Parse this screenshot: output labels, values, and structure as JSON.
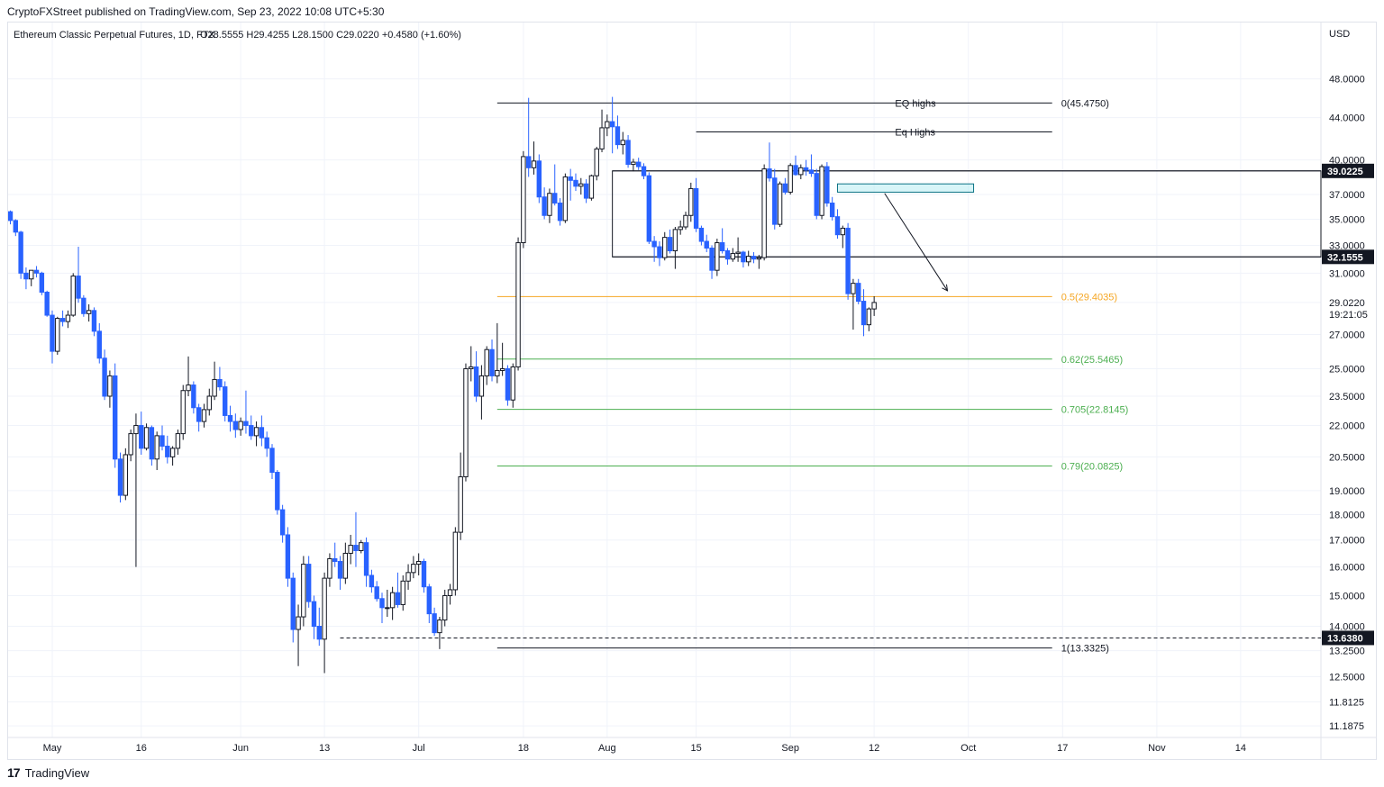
{
  "header": {
    "published": "CryptoFXStreet published on TradingView.com, Sep 23, 2022 10:08 UTC+5:30"
  },
  "footer": {
    "logo_text": "TradingView",
    "logo_mark": "17"
  },
  "colors": {
    "up": "#ffffff",
    "down": "#2962ff",
    "fib_orange": "#f5a623",
    "fib_green": "#4caf50",
    "box": "#b2ebf2"
  },
  "chart_data": {
    "type": "candlestick",
    "legend": {
      "symbol": "Ethereum Classic Perpetual Futures, 1D, FTX",
      "ohlc": "O28.5555  H29.4255  L28.1500  C29.0220  +0.4580 (+1.60%)"
    },
    "currency": "USD",
    "y_scale": "log",
    "ylim": [
      10.9,
      54.5
    ],
    "y_ticks": [
      "48.0000",
      "44.0000",
      "40.0000",
      "37.0000",
      "35.0000",
      "33.0000",
      "31.0000",
      "29.0220",
      "27.0000",
      "25.0000",
      "23.5000",
      "22.0000",
      "20.5000",
      "19.0000",
      "18.0000",
      "17.0000",
      "16.0000",
      "15.0000",
      "14.0000",
      "13.2500",
      "12.5000",
      "11.8125",
      "11.1875"
    ],
    "x_ticks": [
      "May",
      "16",
      "Jun",
      "13",
      "Jul",
      "18",
      "Aug",
      "15",
      "Sep",
      "12",
      "Oct",
      "17",
      "Nov",
      "14"
    ],
    "countdown": "19:21:05",
    "price_badges": [
      {
        "label": "39.0225",
        "value": 39.0225
      },
      {
        "label": "32.1555",
        "value": 32.1555
      },
      {
        "label": "13.6380",
        "value": 13.638
      }
    ],
    "fib_levels": [
      {
        "label": "0(45.4750)",
        "value": 45.475,
        "color": "#131722"
      },
      {
        "label": "0.5(29.4035)",
        "value": 29.4035,
        "color": "#f5a623"
      },
      {
        "label": "0.62(25.5465)",
        "value": 25.5465,
        "color": "#4caf50"
      },
      {
        "label": "0.705(22.8145)",
        "value": 22.8145,
        "color": "#4caf50"
      },
      {
        "label": "0.79(20.0825)",
        "value": 20.0825,
        "color": "#4caf50"
      },
      {
        "label": "1(13.3325)",
        "value": 13.3325,
        "color": "#131722"
      }
    ],
    "annotations": [
      {
        "label": "EQ highs",
        "value": 45.475
      },
      {
        "label": "Eq Highs",
        "value": 42.6
      }
    ],
    "range_box": {
      "top": 39.0225,
      "bottom": 32.1555
    },
    "supply_zone": {
      "top": 37.9,
      "bottom": 37.2
    },
    "candles": [
      [
        35.6,
        35.7,
        34.6,
        34.9
      ],
      [
        34.9,
        35.0,
        33.7,
        34.0
      ],
      [
        34.0,
        34.1,
        30.6,
        31.0
      ],
      [
        31.0,
        31.4,
        29.9,
        30.6
      ],
      [
        30.6,
        31.2,
        30.1,
        31.2
      ],
      [
        31.2,
        31.5,
        30.7,
        31.0
      ],
      [
        31.0,
        31.1,
        29.5,
        29.7
      ],
      [
        29.7,
        29.8,
        28.1,
        28.2
      ],
      [
        28.2,
        28.5,
        25.3,
        26.0
      ],
      [
        26.0,
        28.1,
        25.8,
        28.0
      ],
      [
        28.0,
        28.5,
        27.5,
        27.8
      ],
      [
        27.8,
        28.5,
        27.4,
        28.2
      ],
      [
        28.2,
        31.0,
        28.1,
        30.8
      ],
      [
        30.8,
        32.9,
        29.0,
        29.3
      ],
      [
        29.3,
        29.5,
        28.1,
        28.3
      ],
      [
        28.3,
        28.9,
        27.8,
        28.5
      ],
      [
        28.5,
        28.7,
        26.9,
        27.2
      ],
      [
        27.2,
        27.7,
        25.3,
        25.6
      ],
      [
        25.6,
        26.1,
        23.3,
        23.5
      ],
      [
        23.5,
        24.9,
        22.9,
        24.6
      ],
      [
        24.6,
        25.3,
        20.0,
        20.4
      ],
      [
        20.4,
        20.7,
        18.5,
        18.8
      ],
      [
        18.8,
        20.9,
        18.6,
        20.6
      ],
      [
        20.6,
        21.8,
        20.3,
        21.6
      ],
      [
        21.6,
        22.6,
        16.0,
        22.0
      ],
      [
        22.0,
        22.7,
        20.6,
        20.9
      ],
      [
        20.9,
        22.1,
        20.8,
        21.9
      ],
      [
        21.9,
        22.0,
        20.1,
        20.4
      ],
      [
        20.4,
        21.7,
        19.9,
        21.5
      ],
      [
        21.5,
        22.0,
        20.8,
        21.0
      ],
      [
        21.0,
        21.5,
        20.2,
        20.5
      ],
      [
        20.5,
        21.0,
        20.1,
        20.9
      ],
      [
        20.9,
        21.8,
        20.6,
        21.6
      ],
      [
        21.6,
        24.1,
        21.3,
        23.8
      ],
      [
        23.8,
        25.7,
        23.5,
        24.1
      ],
      [
        24.1,
        24.3,
        22.6,
        22.9
      ],
      [
        22.9,
        23.1,
        21.7,
        22.2
      ],
      [
        22.2,
        23.1,
        21.9,
        22.8
      ],
      [
        22.8,
        23.9,
        22.5,
        23.5
      ],
      [
        23.5,
        25.4,
        23.3,
        24.4
      ],
      [
        24.4,
        25.1,
        23.8,
        24.0
      ],
      [
        24.0,
        24.3,
        22.2,
        22.5
      ],
      [
        22.5,
        23.0,
        21.7,
        22.2
      ],
      [
        22.2,
        22.6,
        21.4,
        21.8
      ],
      [
        21.8,
        22.4,
        21.5,
        22.2
      ],
      [
        22.2,
        23.8,
        21.6,
        22.0
      ],
      [
        22.0,
        22.5,
        21.3,
        21.5
      ],
      [
        21.5,
        22.2,
        21.0,
        21.9
      ],
      [
        21.9,
        22.5,
        21.0,
        21.4
      ],
      [
        21.4,
        21.7,
        20.5,
        20.9
      ],
      [
        20.9,
        21.1,
        19.5,
        19.8
      ],
      [
        19.8,
        19.9,
        18.0,
        18.2
      ],
      [
        18.2,
        18.4,
        16.9,
        17.2
      ],
      [
        17.2,
        17.5,
        15.3,
        15.6
      ],
      [
        15.6,
        15.8,
        13.5,
        13.9
      ],
      [
        13.9,
        14.7,
        12.8,
        14.3
      ],
      [
        14.3,
        16.4,
        14.0,
        16.1
      ],
      [
        16.1,
        16.4,
        14.6,
        14.8
      ],
      [
        14.8,
        15.0,
        13.6,
        14.0
      ],
      [
        14.0,
        14.6,
        13.4,
        13.6
      ],
      [
        13.6,
        15.8,
        12.6,
        15.6
      ],
      [
        15.6,
        16.5,
        15.3,
        16.3
      ],
      [
        16.3,
        16.9,
        16.0,
        16.2
      ],
      [
        16.2,
        16.4,
        15.2,
        15.6
      ],
      [
        15.6,
        16.9,
        15.4,
        16.5
      ],
      [
        16.5,
        17.2,
        16.1,
        16.8
      ],
      [
        16.8,
        18.1,
        16.0,
        16.6
      ],
      [
        16.6,
        17.0,
        16.5,
        16.9
      ],
      [
        16.9,
        17.1,
        15.3,
        15.7
      ],
      [
        15.7,
        15.9,
        15.1,
        15.3
      ],
      [
        15.3,
        15.5,
        14.8,
        14.9
      ],
      [
        14.9,
        15.1,
        14.1,
        14.6
      ],
      [
        14.6,
        15.2,
        14.3,
        14.6
      ],
      [
        14.6,
        15.3,
        14.2,
        15.1
      ],
      [
        15.1,
        15.8,
        14.6,
        14.7
      ],
      [
        14.7,
        15.7,
        14.5,
        15.5
      ],
      [
        15.5,
        16.1,
        15.2,
        15.8
      ],
      [
        15.8,
        16.4,
        15.6,
        16.1
      ],
      [
        16.1,
        16.5,
        15.7,
        16.2
      ],
      [
        16.2,
        16.3,
        15.1,
        15.3
      ],
      [
        15.3,
        15.4,
        14.1,
        14.4
      ],
      [
        14.4,
        14.6,
        13.7,
        13.8
      ],
      [
        13.8,
        14.3,
        13.3,
        14.2
      ],
      [
        14.2,
        15.2,
        14.0,
        15.0
      ],
      [
        15.0,
        15.4,
        14.7,
        15.2
      ],
      [
        15.2,
        17.5,
        15.0,
        17.3
      ],
      [
        17.3,
        20.7,
        17.0,
        19.6
      ],
      [
        19.6,
        25.3,
        19.4,
        25.0
      ],
      [
        25.0,
        26.3,
        24.3,
        25.1
      ],
      [
        25.1,
        26.0,
        23.2,
        23.5
      ],
      [
        23.5,
        25.2,
        22.3,
        24.6
      ],
      [
        24.6,
        26.3,
        24.1,
        26.1
      ],
      [
        26.1,
        26.7,
        24.3,
        24.6
      ],
      [
        24.6,
        27.7,
        24.2,
        24.9
      ],
      [
        24.9,
        26.5,
        24.6,
        25.0
      ],
      [
        25.0,
        25.2,
        23.0,
        23.3
      ],
      [
        23.3,
        25.3,
        22.9,
        25.1
      ],
      [
        25.1,
        33.6,
        24.9,
        33.2
      ],
      [
        33.2,
        40.8,
        32.8,
        40.3
      ],
      [
        40.3,
        46.0,
        38.5,
        39.3
      ],
      [
        39.3,
        41.7,
        38.7,
        39.9
      ],
      [
        39.9,
        40.5,
        36.3,
        36.8
      ],
      [
        36.8,
        37.6,
        35.0,
        35.3
      ],
      [
        35.3,
        37.5,
        34.7,
        37.1
      ],
      [
        37.1,
        39.6,
        36.1,
        36.3
      ],
      [
        36.3,
        36.7,
        34.5,
        34.9
      ],
      [
        34.9,
        38.8,
        34.7,
        38.5
      ],
      [
        38.5,
        39.2,
        36.5,
        38.2
      ],
      [
        38.2,
        38.8,
        37.3,
        37.7
      ],
      [
        37.7,
        38.4,
        37.0,
        37.9
      ],
      [
        37.9,
        38.3,
        36.3,
        36.7
      ],
      [
        36.7,
        38.7,
        36.5,
        38.6
      ],
      [
        38.6,
        41.2,
        38.2,
        41.0
      ],
      [
        41.0,
        44.8,
        40.7,
        43.0
      ],
      [
        43.0,
        44.3,
        42.2,
        43.6
      ],
      [
        43.6,
        46.1,
        40.6,
        43.1
      ],
      [
        43.1,
        44.2,
        41.0,
        41.4
      ],
      [
        41.4,
        42.6,
        40.5,
        41.8
      ],
      [
        41.8,
        42.3,
        39.3,
        39.6
      ],
      [
        39.6,
        40.1,
        39.0,
        39.8
      ],
      [
        39.8,
        40.2,
        39.1,
        39.4
      ],
      [
        39.4,
        39.7,
        38.3,
        38.6
      ],
      [
        38.6,
        38.9,
        33.1,
        33.3
      ],
      [
        33.3,
        33.7,
        31.8,
        32.9
      ],
      [
        32.9,
        33.3,
        31.5,
        32.1
      ],
      [
        32.1,
        34.0,
        31.9,
        33.6
      ],
      [
        33.6,
        34.2,
        32.4,
        32.6
      ],
      [
        32.6,
        34.4,
        31.3,
        34.2
      ],
      [
        34.2,
        34.9,
        33.8,
        34.4
      ],
      [
        34.4,
        35.6,
        34.2,
        35.3
      ],
      [
        35.3,
        38.0,
        34.8,
        37.5
      ],
      [
        37.5,
        38.4,
        34.0,
        34.3
      ],
      [
        34.3,
        34.5,
        33.0,
        33.3
      ],
      [
        33.3,
        33.8,
        32.5,
        32.8
      ],
      [
        32.8,
        33.0,
        30.6,
        31.2
      ],
      [
        31.2,
        33.5,
        30.8,
        33.2
      ],
      [
        33.2,
        34.3,
        32.4,
        32.6
      ],
      [
        32.6,
        32.8,
        31.6,
        32.0
      ],
      [
        32.0,
        32.8,
        31.8,
        32.4
      ],
      [
        32.4,
        33.6,
        31.8,
        32.5
      ],
      [
        32.5,
        32.6,
        31.4,
        31.8
      ],
      [
        31.8,
        32.6,
        31.5,
        32.2
      ],
      [
        32.2,
        32.5,
        31.7,
        32.0
      ],
      [
        32.0,
        32.3,
        31.3,
        32.1
      ],
      [
        32.1,
        39.6,
        31.9,
        39.2
      ],
      [
        39.2,
        41.6,
        38.1,
        38.4
      ],
      [
        38.4,
        39.2,
        34.2,
        34.6
      ],
      [
        34.6,
        38.1,
        34.4,
        37.9
      ],
      [
        37.9,
        38.4,
        37.0,
        37.2
      ],
      [
        37.2,
        39.7,
        37.0,
        39.5
      ],
      [
        39.5,
        40.4,
        38.6,
        38.7
      ],
      [
        38.7,
        39.6,
        38.3,
        39.3
      ],
      [
        39.3,
        40.0,
        38.6,
        39.1
      ],
      [
        39.1,
        40.5,
        38.5,
        38.8
      ],
      [
        38.8,
        39.2,
        35.0,
        35.3
      ],
      [
        35.3,
        39.6,
        35.0,
        39.4
      ],
      [
        39.4,
        39.8,
        36.0,
        36.3
      ],
      [
        36.3,
        36.8,
        34.9,
        35.2
      ],
      [
        35.2,
        35.8,
        33.5,
        33.8
      ],
      [
        33.8,
        34.5,
        32.8,
        34.3
      ],
      [
        34.3,
        34.7,
        29.2,
        29.6
      ],
      [
        29.6,
        30.6,
        27.3,
        30.3
      ],
      [
        30.3,
        30.6,
        28.9,
        29.1
      ],
      [
        29.1,
        29.9,
        26.9,
        27.6
      ],
      [
        27.6,
        28.7,
        27.2,
        28.6
      ],
      [
        28.6,
        29.43,
        28.15,
        29.02
      ]
    ]
  }
}
